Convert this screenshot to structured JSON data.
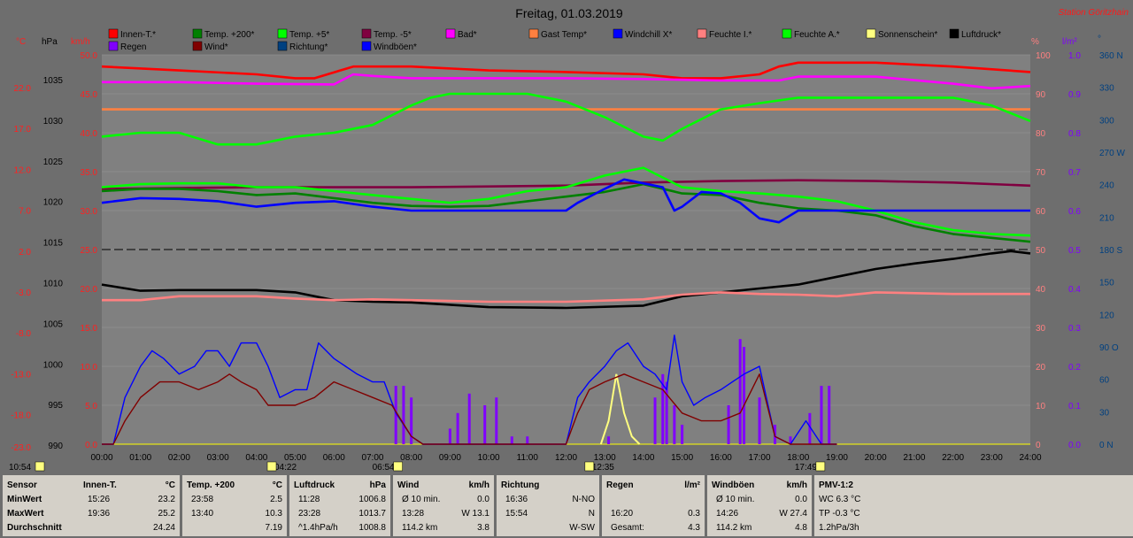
{
  "header": {
    "title": "Freitag, 01.03.2019",
    "station": "Station Göritzhain"
  },
  "legend": [
    {
      "label": "Innen-T.*",
      "color": "#ff0000"
    },
    {
      "label": "Temp. +200*",
      "color": "#008000"
    },
    {
      "label": "Temp. +5*",
      "color": "#00ff00"
    },
    {
      "label": "Temp. -5*",
      "color": "#800040"
    },
    {
      "label": "Bad*",
      "color": "#ff00ff"
    },
    {
      "label": "Gast Temp*",
      "color": "#ff8040"
    },
    {
      "label": "Windchill X*",
      "color": "#0000ff"
    },
    {
      "label": "Feuchte I.*",
      "color": "#ff8080"
    },
    {
      "label": "Feuchte A.*",
      "color": "#00ff00"
    },
    {
      "label": "Sonnenschein*",
      "color": "#ffff80"
    },
    {
      "label": "Luftdruck*",
      "color": "#000000"
    },
    {
      "label": "Regen",
      "color": "#8000ff"
    },
    {
      "label": "Wind*",
      "color": "#800000"
    },
    {
      "label": "Richtung*",
      "color": "#004080"
    },
    {
      "label": "Windböen*",
      "color": "#0000ff"
    }
  ],
  "axes": {
    "unit_c": "°C",
    "unit_hpa": "hPa",
    "unit_kmh": "km/h",
    "unit_pct": "%",
    "unit_lm2": "l/m²",
    "unit_deg": "°",
    "c_ticks": [
      "22.0",
      "17.0",
      "12.0",
      "7.0",
      "2.0",
      "-3.0",
      "-8.0",
      "-13.0",
      "-18.0",
      "-23.0"
    ],
    "hpa_ticks": [
      "1035",
      "1030",
      "1025",
      "1020",
      "1015",
      "1010",
      "1005",
      "1000",
      "995",
      "990"
    ],
    "kmh_ticks": [
      "50.0",
      "45.0",
      "40.0",
      "35.0",
      "30.0",
      "25.0",
      "20.0",
      "15.0",
      "10.0",
      "5.0",
      "0.0"
    ],
    "pct_ticks": [
      "100",
      "90",
      "80",
      "70",
      "60",
      "50",
      "40",
      "30",
      "20",
      "10",
      "0"
    ],
    "lm2_ticks": [
      "1.0",
      "0.9",
      "0.8",
      "0.7",
      "0.6",
      "0.5",
      "0.4",
      "0.3",
      "0.2",
      "0.1",
      "0.0"
    ],
    "deg_ticks": [
      "360 N",
      "330",
      "300",
      "270 W",
      "240",
      "210",
      "180 S",
      "150",
      "120",
      "90 O",
      "60",
      "30",
      "0 N"
    ],
    "time_ticks": [
      "00:00",
      "01:00",
      "02:00",
      "03:00",
      "04:00",
      "05:00",
      "06:00",
      "07:00",
      "08:00",
      "09:00",
      "10:00",
      "11:00",
      "12:00",
      "13:00",
      "14:00",
      "15:00",
      "16:00",
      "17:00",
      "18:00",
      "19:00",
      "20:00",
      "21:00",
      "22:00",
      "23:00",
      "24:00"
    ],
    "markers": [
      "10:54",
      "04:22",
      "06:54",
      "12:35",
      "17:49"
    ]
  },
  "chart_data": {
    "type": "line",
    "x_range": [
      "00:00",
      "24:00"
    ],
    "series": [
      {
        "name": "Innen-T.*",
        "color": "#ff0000",
        "axis": "km/h",
        "x": [
          0,
          2,
          4,
          5,
          5.5,
          6.5,
          8,
          10,
          12,
          14,
          15,
          16,
          17,
          17.5,
          18,
          20,
          22,
          24
        ],
        "values": [
          48.5,
          48.0,
          47.5,
          47.0,
          47.0,
          48.5,
          48.5,
          48.0,
          47.8,
          47.5,
          47.0,
          47.0,
          47.5,
          48.5,
          49.0,
          49.0,
          48.5,
          47.8
        ]
      },
      {
        "name": "Bad*",
        "color": "#ff00ff",
        "axis": "km/h",
        "x": [
          0,
          2,
          4,
          6,
          6.5,
          7,
          8,
          10,
          12,
          14,
          16,
          17.5,
          18,
          20,
          22,
          23,
          24
        ],
        "values": [
          46.5,
          46.5,
          46.3,
          46.2,
          47.5,
          47.3,
          47.0,
          47.0,
          47.0,
          46.9,
          46.7,
          46.7,
          47.2,
          47.2,
          46.3,
          45.7,
          46.0
        ]
      },
      {
        "name": "Gast Temp*",
        "color": "#ff8040",
        "axis": "km/h",
        "x": [
          0,
          24
        ],
        "values": [
          43.0,
          43.0
        ]
      },
      {
        "name": "Feuchte A.*",
        "color": "#00ff00",
        "axis": "km/h",
        "x": [
          0,
          1,
          2,
          3,
          4,
          5,
          6,
          7,
          8,
          8.5,
          9,
          10,
          11,
          12,
          13,
          14,
          14.5,
          15,
          16,
          17,
          18,
          20,
          22,
          23,
          24
        ],
        "values": [
          39.5,
          40.0,
          40.0,
          38.5,
          38.5,
          39.5,
          40.0,
          41.0,
          43.5,
          44.5,
          45.0,
          45.0,
          45.0,
          44.0,
          42.0,
          39.5,
          39.0,
          40.5,
          43.0,
          43.8,
          44.5,
          44.5,
          44.5,
          43.5,
          41.5
        ]
      },
      {
        "name": "Temp. -5*",
        "color": "#800040",
        "axis": "km/h",
        "x": [
          0,
          4,
          8,
          12,
          14,
          16,
          18,
          20,
          22,
          24
        ],
        "values": [
          32.8,
          33.0,
          33.0,
          33.2,
          33.6,
          33.8,
          33.9,
          33.8,
          33.6,
          33.2
        ]
      },
      {
        "name": "Temp. +5*",
        "color": "#00ff00",
        "axis": "km/h",
        "x": [
          0,
          1,
          2,
          3,
          4,
          5,
          6,
          7,
          8,
          9,
          10,
          11,
          12,
          13,
          14,
          15,
          16,
          17,
          18,
          19,
          20,
          21,
          22,
          23,
          24
        ],
        "values": [
          33.0,
          33.4,
          33.5,
          33.5,
          33.0,
          33.0,
          32.5,
          32.0,
          31.5,
          31.0,
          31.5,
          32.5,
          33.0,
          34.5,
          35.5,
          33.0,
          32.5,
          32.2,
          31.8,
          31.2,
          30.0,
          28.5,
          27.5,
          27.0,
          26.8
        ]
      },
      {
        "name": "Temp. +200*",
        "color": "#008000",
        "axis": "km/h",
        "x": [
          0,
          1,
          2,
          3,
          4,
          5,
          6,
          7,
          8,
          9,
          10,
          11,
          12,
          13,
          14,
          15,
          16,
          17,
          18,
          19,
          20,
          21,
          22,
          23,
          24
        ],
        "values": [
          32.5,
          32.8,
          32.8,
          32.5,
          32.0,
          32.2,
          31.6,
          31.0,
          30.6,
          30.5,
          30.6,
          31.2,
          31.8,
          32.4,
          33.4,
          32.2,
          32.0,
          31.0,
          30.3,
          30.0,
          29.4,
          28.0,
          27.0,
          26.5,
          26.0
        ]
      },
      {
        "name": "Windchill X*",
        "color": "#0000ff",
        "axis": "km/h",
        "x": [
          0,
          1,
          2,
          3,
          4,
          5,
          6,
          7,
          8,
          10,
          12,
          12.3,
          13,
          13.5,
          14,
          14.5,
          14.8,
          15,
          15.5,
          16,
          16.5,
          17,
          17.5,
          18,
          20,
          22,
          24
        ],
        "values": [
          31.0,
          31.6,
          31.5,
          31.2,
          30.5,
          31.0,
          31.2,
          30.5,
          30.0,
          30.0,
          30.0,
          31.0,
          32.8,
          34.0,
          33.5,
          33.0,
          30.0,
          30.5,
          32.4,
          32.2,
          31.0,
          29.0,
          28.5,
          30.0,
          30.0,
          30.0,
          30.0
        ]
      },
      {
        "name": "Luftdruck*",
        "color": "#000000",
        "axis": "km/h",
        "x": [
          0,
          1,
          2,
          3,
          4,
          5,
          6,
          7,
          8,
          10,
          12,
          14,
          15,
          16,
          17,
          18,
          19,
          20,
          21,
          22,
          23,
          23.5,
          24
        ],
        "values": [
          20.5,
          19.7,
          19.8,
          19.8,
          19.8,
          19.5,
          18.5,
          18.3,
          18.2,
          17.6,
          17.5,
          17.8,
          19.0,
          19.5,
          20.0,
          20.5,
          21.5,
          22.5,
          23.2,
          23.8,
          24.5,
          24.8,
          24.5
        ]
      },
      {
        "name": "Feuchte I.*",
        "color": "#ff8080",
        "axis": "km/h",
        "x": [
          0,
          1,
          2,
          4,
          5,
          6,
          7,
          8,
          10,
          12,
          14,
          15,
          16,
          17,
          18,
          19,
          20,
          22,
          24
        ],
        "values": [
          18.5,
          18.5,
          19.0,
          19.0,
          18.7,
          18.5,
          18.6,
          18.5,
          18.3,
          18.3,
          18.6,
          19.2,
          19.5,
          19.3,
          19.2,
          19.0,
          19.5,
          19.3,
          19.3
        ]
      },
      {
        "name": "Windböen*",
        "color": "#0000ff",
        "axis": "km/h",
        "x": [
          0,
          0.3,
          0.6,
          1,
          1.3,
          1.6,
          2,
          2.4,
          2.7,
          3,
          3.3,
          3.6,
          4,
          4.3,
          4.6,
          5,
          5.3,
          5.6,
          6,
          6.3,
          6.6,
          7,
          7.3,
          7.6,
          8,
          8.3,
          12,
          12.3,
          12.6,
          13,
          13.3,
          13.6,
          14,
          14.3,
          14.6,
          14.8,
          15,
          15.3,
          15.6,
          16,
          16.3,
          16.6,
          17,
          17.4,
          17.8,
          18.2,
          18.6,
          19
        ],
        "values": [
          0,
          0,
          6,
          10,
          12,
          11,
          9,
          10,
          12,
          12,
          10,
          13,
          13,
          10,
          6,
          7,
          7,
          13,
          11,
          10,
          9,
          8,
          8,
          4,
          1,
          0,
          0,
          6,
          8,
          10,
          12,
          13,
          10,
          9,
          7,
          14,
          8,
          5,
          6,
          7,
          8,
          9,
          10,
          1,
          0,
          3,
          0,
          0
        ]
      },
      {
        "name": "Wind*",
        "color": "#800000",
        "axis": "km/h",
        "x": [
          0,
          0.3,
          0.6,
          1,
          1.5,
          2,
          2.5,
          3,
          3.3,
          3.6,
          4,
          4.3,
          4.6,
          5,
          5.5,
          6,
          6.5,
          7,
          7.5,
          8,
          8.3,
          12,
          12.3,
          12.6,
          13,
          13.5,
          14,
          14.5,
          15,
          15.5,
          16,
          16.5,
          17,
          17.4,
          17.8,
          18.2,
          18.6,
          19
        ],
        "values": [
          0,
          0,
          3,
          6,
          8,
          8,
          7,
          8,
          9,
          8,
          7,
          5,
          5,
          5,
          6,
          8,
          7,
          6,
          5,
          1,
          0,
          0,
          4,
          7,
          8,
          9,
          8,
          7,
          4,
          3,
          3,
          4,
          9,
          1,
          0,
          0,
          0,
          0
        ]
      }
    ],
    "rain": {
      "name": "Regen",
      "color": "#8000ff",
      "x": [
        7.6,
        7.8,
        8,
        9,
        9.2,
        9.5,
        9.9,
        10.2,
        10.6,
        11,
        13.1,
        14.3,
        14.5,
        14.6,
        14.8,
        15,
        16.2,
        16.5,
        16.6,
        17,
        17.4,
        17.8,
        18.3,
        18.6,
        18.8
      ],
      "values": [
        0.15,
        0.15,
        0.12,
        0.04,
        0.08,
        0.13,
        0.1,
        0.12,
        0.02,
        0.02,
        0.02,
        0.12,
        0.18,
        0.16,
        0.1,
        0.05,
        0.1,
        0.27,
        0.25,
        0.12,
        0.05,
        0.02,
        0.08,
        0.15,
        0.15
      ]
    },
    "sunshine": {
      "name": "Sonnenschein*",
      "color": "#ffff80",
      "x": [
        12.9,
        13.1,
        13.3,
        13.5,
        13.7,
        13.9
      ],
      "values": [
        0,
        3,
        9,
        4,
        1,
        0
      ]
    }
  },
  "table": {
    "rows_label": [
      "Sensor",
      "MinWert",
      "MaxWert",
      "Durchschnitt"
    ],
    "cols": [
      {
        "head": "Innen-T.",
        "unit": "°C",
        "r1": [
          "15:26",
          "23.2"
        ],
        "r2": [
          "19:36",
          "25.2"
        ],
        "r3": [
          "",
          "24.24"
        ]
      },
      {
        "head": "Temp. +200",
        "unit": "°C",
        "r1": [
          "23:58",
          "2.5"
        ],
        "r2": [
          "13:40",
          "10.3"
        ],
        "r3": [
          "",
          "7.19"
        ]
      },
      {
        "head": "Luftdruck",
        "unit": "hPa",
        "r1": [
          "11:28",
          "1006.8"
        ],
        "r2": [
          "23:28",
          "1013.7"
        ],
        "r3": [
          "^1.4hPa/h",
          "1008.8"
        ]
      },
      {
        "head": "Wind",
        "unit": "km/h",
        "r1": [
          "Ø 10 min.",
          "0.0"
        ],
        "r2": [
          "13:28",
          "W 13.1"
        ],
        "r3": [
          "114.2 km",
          "3.8"
        ]
      },
      {
        "head": "Richtung",
        "unit": "",
        "r1": [
          "16:36",
          "N-NO"
        ],
        "r2": [
          "15:54",
          "N"
        ],
        "r3": [
          "",
          "W-SW"
        ]
      },
      {
        "head": "Regen",
        "unit": "l/m²",
        "r1": [
          "",
          ""
        ],
        "r2": [
          "16:20",
          "0.3"
        ],
        "r3": [
          "Gesamt:",
          "4.3"
        ]
      },
      {
        "head": "Windböen",
        "unit": "km/h",
        "r1": [
          "Ø 10 min.",
          "0.0"
        ],
        "r2": [
          "14:26",
          "W 27.4"
        ],
        "r3": [
          "114.2 km",
          "4.8"
        ]
      },
      {
        "head": "PMV-1:2",
        "unit": "",
        "r1": [
          "WC 6.3 °C",
          ""
        ],
        "r2": [
          "TP -0.3 °C",
          ""
        ],
        "r3": [
          "1.2hPa/3h",
          ""
        ]
      }
    ]
  }
}
